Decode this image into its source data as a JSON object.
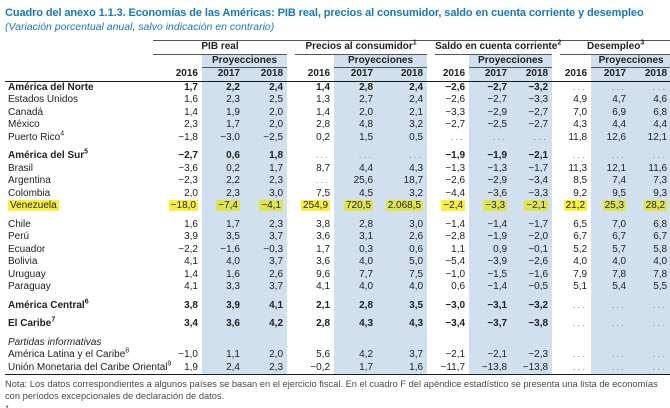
{
  "title": "Cuadro del anexo 1.1.3. Economías de las Américas: PIB real, precios al consumidor, saldo en cuenta corriente y desempleo",
  "subtitle": "(Variación porcentual anual, salvo indicación en contrario)",
  "colors": {
    "title_blue": "#1878bd",
    "projection_band_blue": "#d0e0ee",
    "highlight_yellow": "#f9ef3e",
    "highlight_yellow_on_blue": "#dfe54d",
    "body_text": "#222222",
    "ellipsis_gray": "#8b9197",
    "note_gray": "#4a4a4a"
  },
  "table": {
    "groups": [
      {
        "label": "PIB real",
        "sup": ""
      },
      {
        "label": "Precios al consumidor",
        "sup": "1"
      },
      {
        "label": "Saldo en cuenta corriente",
        "sup": "2"
      },
      {
        "label": "Desempleo",
        "sup": "3"
      }
    ],
    "proj_label": "Proyecciones",
    "years": [
      "2016",
      "2017",
      "2018"
    ],
    "rows": [
      {
        "name": "América del Norte",
        "sup": "",
        "bold": true,
        "values": [
          "1,7",
          "2,2",
          "2,4",
          "1,4",
          "2,8",
          "2,4",
          "−2,6",
          "−2,7",
          "−3,2",
          "...",
          "...",
          "..."
        ]
      },
      {
        "name": "Estados Unidos",
        "sup": "",
        "values": [
          "1,6",
          "2,3",
          "2,5",
          "1,3",
          "2,7",
          "2,4",
          "−2,6",
          "−2,7",
          "−3,3",
          "4,9",
          "4,7",
          "4,6"
        ]
      },
      {
        "name": "Canadá",
        "sup": "",
        "values": [
          "1,4",
          "1,9",
          "2,0",
          "1,4",
          "2,0",
          "2,1",
          "−3,3",
          "−2,9",
          "−2,7",
          "7,0",
          "6,9",
          "6,8"
        ]
      },
      {
        "name": "México",
        "sup": "",
        "values": [
          "2,3",
          "1,7",
          "2,0",
          "2,8",
          "4,8",
          "3,2",
          "−2,7",
          "−2,5",
          "−2,7",
          "4,3",
          "4,4",
          "4,4"
        ]
      },
      {
        "name": "Puerto Rico",
        "sup": "4",
        "values": [
          "−1,8",
          "−3,0",
          "−2,5",
          "0,2",
          "1,5",
          "0,5",
          "...",
          "...",
          "...",
          "11,8",
          "12,6",
          "12,1"
        ]
      },
      {
        "name": "América del Sur",
        "sup": "5",
        "bold": true,
        "gap": true,
        "values": [
          "−2,7",
          "0,6",
          "1,8",
          "...",
          "...",
          "...",
          "−1,9",
          "−1,9",
          "−2,1",
          "...",
          "...",
          "..."
        ]
      },
      {
        "name": "Brasil",
        "sup": "",
        "values": [
          "−3,6",
          "0,2",
          "1,7",
          "8,7",
          "4,4",
          "4,3",
          "−1,3",
          "−1,3",
          "−1,7",
          "11,3",
          "12,1",
          "11,6"
        ]
      },
      {
        "name": "Argentina",
        "sup": "",
        "values": [
          "−2,3",
          "2,2",
          "2,3",
          "...",
          "25,6",
          "18,7",
          "−2,6",
          "−2,9",
          "−3,4",
          "8,5",
          "7,4",
          "7,3"
        ]
      },
      {
        "name": "Colombia",
        "sup": "",
        "values": [
          "2,0",
          "2,3",
          "3,0",
          "7,5",
          "4,5",
          "3,2",
          "−4,4",
          "−3,6",
          "−3,3",
          "9,2",
          "9,5",
          "9,3"
        ]
      },
      {
        "name": "Venezuela",
        "sup": "",
        "highlight": true,
        "values": [
          "−18,0",
          "−7,4",
          "−4,1",
          "254,9",
          "720,5",
          "2.068,5",
          "−2,4",
          "−3,3",
          "−2,1",
          "21,2",
          "25,3",
          "28,2"
        ]
      },
      {
        "name": "Chile",
        "sup": "",
        "gap": true,
        "values": [
          "1,6",
          "1,7",
          "2,3",
          "3,8",
          "2,8",
          "3,0",
          "−1,4",
          "−1,4",
          "−1,7",
          "6,5",
          "7,0",
          "6,8"
        ]
      },
      {
        "name": "Perú",
        "sup": "",
        "values": [
          "3,9",
          "3,5",
          "3,7",
          "3,6",
          "3,1",
          "2,6",
          "−2,8",
          "−1,9",
          "−2,0",
          "6,7",
          "6,7",
          "6,7"
        ]
      },
      {
        "name": "Ecuador",
        "sup": "",
        "values": [
          "−2,2",
          "−1,6",
          "−0,3",
          "1,7",
          "0,3",
          "0,6",
          "1,1",
          "0,9",
          "−0,1",
          "5,2",
          "5,7",
          "5,8"
        ]
      },
      {
        "name": "Bolivia",
        "sup": "",
        "values": [
          "4,1",
          "4,0",
          "3,7",
          "3,6",
          "4,0",
          "5,0",
          "−5,4",
          "−3,9",
          "−2,6",
          "4,0",
          "4,0",
          "4,0"
        ]
      },
      {
        "name": "Uruguay",
        "sup": "",
        "values": [
          "1,4",
          "1,6",
          "2,6",
          "9,6",
          "7,7",
          "7,5",
          "−1,0",
          "−1,5",
          "−1,6",
          "7,9",
          "7,8",
          "7,8"
        ]
      },
      {
        "name": "Paraguay",
        "sup": "",
        "values": [
          "4,1",
          "3,3",
          "3,7",
          "4,1",
          "4,0",
          "4,0",
          "0,6",
          "−1,4",
          "−0,5",
          "5,1",
          "5,4",
          "5,5"
        ]
      },
      {
        "name": "América Central",
        "sup": "6",
        "bold": true,
        "gap": true,
        "values": [
          "3,8",
          "3,9",
          "4,1",
          "2,1",
          "2,8",
          "3,5",
          "−3,0",
          "−3,1",
          "−3,2",
          "...",
          "...",
          "..."
        ]
      },
      {
        "name": "El Caribe",
        "sup": "7",
        "bold": true,
        "gap": true,
        "values": [
          "3,4",
          "3,6",
          "4,2",
          "2,8",
          "4,3",
          "4,3",
          "−3,4",
          "−3,7",
          "−3,8",
          "...",
          "...",
          "..."
        ]
      },
      {
        "name": "Partidas informativas",
        "sup": "",
        "italic": true,
        "gap": true,
        "values": []
      },
      {
        "name": "América Latina y el Caribe",
        "sup": "8",
        "values": [
          "−1,0",
          "1,1",
          "2,0",
          "5,6",
          "4,2",
          "3,7",
          "−2,1",
          "−2,1",
          "−2,3",
          "...",
          "...",
          "..."
        ]
      },
      {
        "name": "Unión Monetaria del Caribe Oriental",
        "sup": "9",
        "last": true,
        "values": [
          "1,9",
          "2,4",
          "2,3",
          "−0,2",
          "1,7",
          "1,6",
          "−11,7",
          "−13,8",
          "−13,8",
          "...",
          "...",
          "..."
        ]
      }
    ]
  },
  "note": "Nota: Los datos correspondientes a algunos países se basan en el ejercicio fiscal. En el cuadro F del apéndice estadístico se presenta una lista de economías con períodos excepcionales de declaración de datos.",
  "clipped_footnote_marker": "1"
}
